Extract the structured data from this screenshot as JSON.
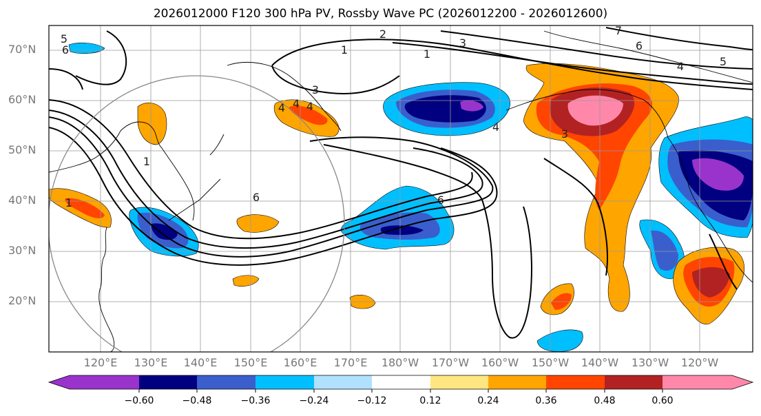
{
  "title": "2026012000 F120 300 hPa PV, Rossby Wave PC (2026012200 - 2026012600)",
  "lat_labels": [
    "70°N",
    "60°N",
    "50°N",
    "40°N",
    "30°N",
    "20°N"
  ],
  "lon_labels": [
    "120°E",
    "130°E",
    "140°E",
    "150°E",
    "160°E",
    "170°E",
    "180°W",
    "170°W",
    "160°W",
    "150°W",
    "140°W",
    "130°W",
    "120°W"
  ],
  "colorbar": {
    "ticks": [
      "−0.60",
      "−0.48",
      "−0.36",
      "−0.24",
      "−0.12",
      "0.12",
      "0.24",
      "0.36",
      "0.48",
      "0.60"
    ],
    "colors": [
      "#9933cc",
      "#000080",
      "#3a5fcd",
      "#00bfff",
      "#b0e2ff",
      "#ffffff",
      "#ffe680",
      "#ffa500",
      "#ff4500",
      "#b22222",
      "#ff88aa"
    ]
  },
  "contour_labels": [
    "5",
    "6",
    "2",
    "3",
    "1",
    "7",
    "6",
    "4",
    "5",
    "1",
    "4",
    "4",
    "4",
    "4",
    "3",
    "6",
    "6",
    "1",
    "3",
    "1"
  ],
  "palette": {
    "purple": "#9933cc",
    "navy": "#000080",
    "blue": "#3a5fcd",
    "cyan": "#00bfff",
    "lightblue": "#b0e2ff",
    "yellow": "#ffe680",
    "orange": "#ffa500",
    "red": "#ff4500",
    "darkred": "#b22222",
    "pink": "#ff88aa"
  }
}
